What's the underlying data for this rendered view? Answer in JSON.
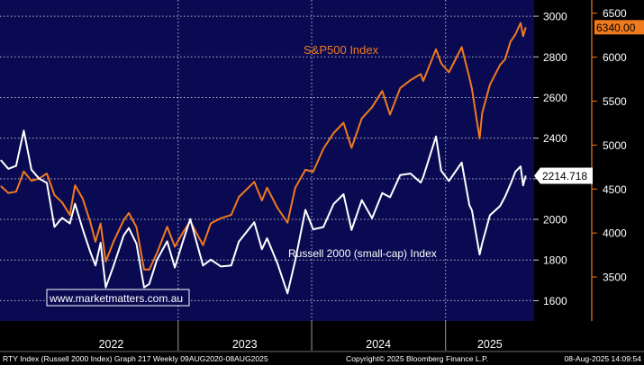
{
  "chart_data": {
    "type": "line",
    "background": "#000000",
    "plot_background": "#0a0a52",
    "grid": true,
    "x_axis": {
      "range": [
        "2021-09-01",
        "2025-08-31"
      ],
      "year_labels": [
        {
          "label": "2022",
          "start": "2022-01-01",
          "end": "2022-12-31"
        },
        {
          "label": "2023",
          "start": "2023-01-01",
          "end": "2023-12-31"
        },
        {
          "label": "2024",
          "start": "2024-01-01",
          "end": "2024-12-31"
        },
        {
          "label": "2025",
          "start": "2025-01-01",
          "end": "2025-08-31"
        }
      ]
    },
    "y_axis_left_inner": {
      "series": "Russell 2000 (small-cap) Index",
      "ticks": [
        1600,
        1800,
        2000,
        2200,
        2400,
        2600,
        2800,
        3000
      ],
      "tick_labels": [
        "1600",
        "1800",
        "2000",
        "2200",
        "2400",
        "2600",
        "2800",
        "3000"
      ],
      "ylim": [
        1500,
        3080
      ]
    },
    "y_axis_right": {
      "series": "S&P500 Index",
      "ticks": [
        3500,
        4000,
        4500,
        5000,
        5500,
        6000,
        6500
      ],
      "tick_labels": [
        "3500",
        "4000",
        "4500",
        "5000",
        "5500",
        "6000",
        "6500"
      ],
      "ylim": [
        3000,
        6650
      ],
      "color": "#f07a1e"
    },
    "series": [
      {
        "name": "S&P500 Index",
        "color": "#f07a1e",
        "axis": "right",
        "last_value_label": "6340.00",
        "points": [
          [
            "2021-09-03",
            4535
          ],
          [
            "2021-09-24",
            4455
          ],
          [
            "2021-10-15",
            4470
          ],
          [
            "2021-11-05",
            4700
          ],
          [
            "2021-11-26",
            4595
          ],
          [
            "2021-12-17",
            4620
          ],
          [
            "2022-01-07",
            4677
          ],
          [
            "2022-01-28",
            4431
          ],
          [
            "2022-02-18",
            4348
          ],
          [
            "2022-03-11",
            4204
          ],
          [
            "2022-03-25",
            4543
          ],
          [
            "2022-04-15",
            4392
          ],
          [
            "2022-05-06",
            4123
          ],
          [
            "2022-05-20",
            3901
          ],
          [
            "2022-06-03",
            4108
          ],
          [
            "2022-06-17",
            3675
          ],
          [
            "2022-07-08",
            3899
          ],
          [
            "2022-08-05",
            4145
          ],
          [
            "2022-08-19",
            4228
          ],
          [
            "2022-09-09",
            4067
          ],
          [
            "2022-09-30",
            3585
          ],
          [
            "2022-10-14",
            3583
          ],
          [
            "2022-11-04",
            3770
          ],
          [
            "2022-12-02",
            4071
          ],
          [
            "2022-12-23",
            3844
          ],
          [
            "2023-01-13",
            3999
          ],
          [
            "2023-02-03",
            4136
          ],
          [
            "2023-03-10",
            3861
          ],
          [
            "2023-03-31",
            4109
          ],
          [
            "2023-04-28",
            4169
          ],
          [
            "2023-05-26",
            4205
          ],
          [
            "2023-06-16",
            4410
          ],
          [
            "2023-07-28",
            4582
          ],
          [
            "2023-08-18",
            4370
          ],
          [
            "2023-09-01",
            4515
          ],
          [
            "2023-09-29",
            4288
          ],
          [
            "2023-10-27",
            4117
          ],
          [
            "2023-11-17",
            4514
          ],
          [
            "2023-12-15",
            4719
          ],
          [
            "2024-01-05",
            4697
          ],
          [
            "2024-02-02",
            4958
          ],
          [
            "2024-03-01",
            5137
          ],
          [
            "2024-03-28",
            5254
          ],
          [
            "2024-04-19",
            4967
          ],
          [
            "2024-05-17",
            5303
          ],
          [
            "2024-06-14",
            5431
          ],
          [
            "2024-07-12",
            5615
          ],
          [
            "2024-08-02",
            5346
          ],
          [
            "2024-08-30",
            5648
          ],
          [
            "2024-09-27",
            5738
          ],
          [
            "2024-10-25",
            5808
          ],
          [
            "2024-11-01",
            5729
          ],
          [
            "2024-12-06",
            6090
          ],
          [
            "2024-12-20",
            5930
          ],
          [
            "2025-01-10",
            5827
          ],
          [
            "2025-02-14",
            6114
          ],
          [
            "2025-03-07",
            5770
          ],
          [
            "2025-03-14",
            5638
          ],
          [
            "2025-04-04",
            5074
          ],
          [
            "2025-04-11",
            5363
          ],
          [
            "2025-05-02",
            5686
          ],
          [
            "2025-05-30",
            5912
          ],
          [
            "2025-06-13",
            5977
          ],
          [
            "2025-06-27",
            6173
          ],
          [
            "2025-07-11",
            6260
          ],
          [
            "2025-07-25",
            6389
          ],
          [
            "2025-08-01",
            6238
          ],
          [
            "2025-08-08",
            6340
          ]
        ]
      },
      {
        "name": "Russell 2000 (small-cap) Index",
        "color": "#ffffff",
        "axis": "left",
        "last_value_label": "2214.718",
        "points": [
          [
            "2021-09-03",
            2292
          ],
          [
            "2021-09-24",
            2249
          ],
          [
            "2021-10-15",
            2264
          ],
          [
            "2021-11-05",
            2437
          ],
          [
            "2021-11-26",
            2245
          ],
          [
            "2021-12-17",
            2200
          ],
          [
            "2022-01-07",
            2180
          ],
          [
            "2022-01-28",
            1963
          ],
          [
            "2022-02-18",
            2007
          ],
          [
            "2022-03-11",
            1980
          ],
          [
            "2022-03-25",
            2077
          ],
          [
            "2022-04-15",
            1952
          ],
          [
            "2022-05-06",
            1839
          ],
          [
            "2022-05-20",
            1773
          ],
          [
            "2022-06-03",
            1885
          ],
          [
            "2022-06-17",
            1665
          ],
          [
            "2022-07-08",
            1769
          ],
          [
            "2022-08-05",
            1921
          ],
          [
            "2022-08-19",
            1957
          ],
          [
            "2022-09-09",
            1880
          ],
          [
            "2022-09-30",
            1665
          ],
          [
            "2022-10-14",
            1682
          ],
          [
            "2022-11-04",
            1800
          ],
          [
            "2022-12-02",
            1892
          ],
          [
            "2022-12-23",
            1763
          ],
          [
            "2023-01-13",
            1887
          ],
          [
            "2023-02-03",
            2001
          ],
          [
            "2023-03-10",
            1773
          ],
          [
            "2023-03-31",
            1802
          ],
          [
            "2023-04-28",
            1768
          ],
          [
            "2023-05-26",
            1773
          ],
          [
            "2023-06-16",
            1891
          ],
          [
            "2023-07-28",
            1986
          ],
          [
            "2023-08-18",
            1853
          ],
          [
            "2023-09-01",
            1907
          ],
          [
            "2023-09-29",
            1785
          ],
          [
            "2023-10-27",
            1636
          ],
          [
            "2023-11-17",
            1798
          ],
          [
            "2023-12-15",
            2047
          ],
          [
            "2024-01-05",
            1951
          ],
          [
            "2024-02-02",
            1962
          ],
          [
            "2024-03-01",
            2076
          ],
          [
            "2024-03-28",
            2124
          ],
          [
            "2024-04-19",
            1948
          ],
          [
            "2024-05-17",
            2095
          ],
          [
            "2024-06-14",
            2006
          ],
          [
            "2024-07-12",
            2130
          ],
          [
            "2024-08-02",
            2109
          ],
          [
            "2024-08-30",
            2218
          ],
          [
            "2024-09-27",
            2226
          ],
          [
            "2024-10-25",
            2181
          ],
          [
            "2024-11-01",
            2209
          ],
          [
            "2024-12-06",
            2408
          ],
          [
            "2024-12-20",
            2240
          ],
          [
            "2025-01-10",
            2189
          ],
          [
            "2025-02-14",
            2280
          ],
          [
            "2025-03-07",
            2071
          ],
          [
            "2025-03-14",
            2044
          ],
          [
            "2025-04-04",
            1827
          ],
          [
            "2025-04-11",
            1881
          ],
          [
            "2025-05-02",
            2020
          ],
          [
            "2025-05-30",
            2066
          ],
          [
            "2025-06-13",
            2113
          ],
          [
            "2025-06-27",
            2172
          ],
          [
            "2025-07-11",
            2235
          ],
          [
            "2025-07-25",
            2261
          ],
          [
            "2025-08-01",
            2167
          ],
          [
            "2025-08-08",
            2215
          ]
        ]
      }
    ],
    "annotations": [
      {
        "text": "S&P500 Index",
        "color": "#f07a1e",
        "anchor": "upper-middle"
      },
      {
        "text": "Russell 2000 (small-cap) Index",
        "color": "#ffffff",
        "anchor": "lower-middle"
      }
    ]
  },
  "watermark": {
    "text": "www.marketmatters.com.au",
    "color": "#ffffff",
    "border_color": "#ffffff"
  },
  "footer": {
    "left": "RTY Index (Russell 2000 Index) Graph 217  Weekly 09AUG2020-08AUG2025",
    "center": "Copyright© 2025 Bloomberg Finance L.P.",
    "right": "08-Aug-2025 14:09:54"
  }
}
